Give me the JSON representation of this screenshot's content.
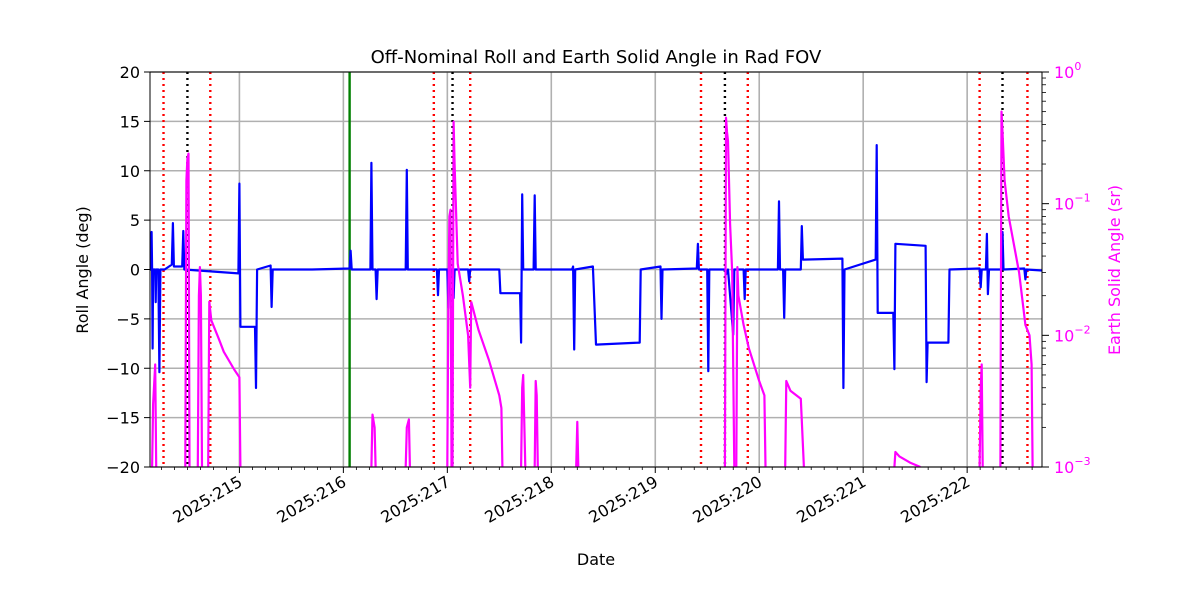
{
  "chart_data": {
    "type": "line",
    "title": "Off-Nominal Roll and Earth Solid Angle in Rad FOV",
    "xlabel": "Date",
    "ylabel": "Roll Angle (deg)",
    "y2label": "Earth Solid Angle (sr)",
    "xlim": [
      214.14,
      222.72
    ],
    "ylim": [
      -20,
      20
    ],
    "y2lim": [
      0.001,
      1
    ],
    "y2scale": "log",
    "grid": true,
    "legend": "none",
    "x_ticks": [
      {
        "value": 215,
        "label": "2025:215"
      },
      {
        "value": 216,
        "label": "2025:216"
      },
      {
        "value": 217,
        "label": "2025:217"
      },
      {
        "value": 218,
        "label": "2025:218"
      },
      {
        "value": 219,
        "label": "2025:219"
      },
      {
        "value": 220,
        "label": "2025:220"
      },
      {
        "value": 221,
        "label": "2025:221"
      },
      {
        "value": 222,
        "label": "2025:222"
      }
    ],
    "y_ticks": [
      {
        "value": 20,
        "label": "20"
      },
      {
        "value": 15,
        "label": "15"
      },
      {
        "value": 10,
        "label": "10"
      },
      {
        "value": 5,
        "label": "5"
      },
      {
        "value": 0,
        "label": "0"
      },
      {
        "value": -5,
        "label": "−5"
      },
      {
        "value": -10,
        "label": "−10"
      },
      {
        "value": -15,
        "label": "−15"
      },
      {
        "value": -20,
        "label": "−20"
      }
    ],
    "y2_ticks": [
      {
        "value": 1,
        "base": "10",
        "exp": "0"
      },
      {
        "value": 0.1,
        "base": "10",
        "exp": "−1"
      },
      {
        "value": 0.01,
        "base": "10",
        "exp": "−2"
      },
      {
        "value": 0.001,
        "base": "10",
        "exp": "−3"
      }
    ],
    "colors": {
      "roll": "#0000ff",
      "solid_angle": "#ff00ff",
      "red_marker": "#ff0000",
      "black_marker": "#000000",
      "green_marker": "#008000",
      "grid": "#b0b0b0"
    },
    "vertical_markers": {
      "red_dotted": [
        214.27,
        214.72,
        216.87,
        217.22,
        219.44,
        219.89,
        222.12,
        222.58
      ],
      "black_dotted": [
        214.5,
        217.05,
        219.67,
        222.34
      ],
      "green_solid": [
        216.06
      ]
    },
    "series": [
      {
        "axis": "left",
        "color": "#0000ff",
        "points": [
          [
            214.14,
            0.0
          ],
          [
            214.15,
            0.0
          ],
          [
            214.155,
            3.8
          ],
          [
            214.16,
            0.0
          ],
          [
            214.165,
            -8
          ],
          [
            214.17,
            0.0
          ],
          [
            214.19,
            0.0
          ],
          [
            214.195,
            -3.3
          ],
          [
            214.2,
            0.0
          ],
          [
            214.22,
            0.0
          ],
          [
            214.23,
            -10.4
          ],
          [
            214.24,
            0.0
          ],
          [
            214.28,
            0.0
          ],
          [
            214.35,
            0.5
          ],
          [
            214.36,
            4.7
          ],
          [
            214.37,
            0.3
          ],
          [
            214.45,
            0.3
          ],
          [
            214.46,
            3.9
          ],
          [
            214.47,
            0.0
          ],
          [
            214.99,
            -0.4
          ],
          [
            215.0,
            8.7
          ],
          [
            215.01,
            -5.8
          ],
          [
            215.15,
            -5.8
          ],
          [
            215.16,
            -12.0
          ],
          [
            215.17,
            0.0
          ],
          [
            215.3,
            0.4
          ],
          [
            215.31,
            -3.8
          ],
          [
            215.32,
            0.0
          ],
          [
            215.7,
            0.0
          ],
          [
            216.06,
            0.1
          ],
          [
            216.07,
            1.9
          ],
          [
            216.08,
            0.0
          ],
          [
            216.26,
            0.0
          ],
          [
            216.27,
            10.8
          ],
          [
            216.28,
            0.0
          ],
          [
            216.31,
            0.0
          ],
          [
            216.32,
            -3.0
          ],
          [
            216.33,
            0.0
          ],
          [
            216.6,
            0.0
          ],
          [
            216.61,
            10.1
          ],
          [
            216.62,
            0.0
          ],
          [
            216.9,
            0.0
          ],
          [
            216.91,
            -2.6
          ],
          [
            216.92,
            0.0
          ],
          [
            217.0,
            0.0
          ],
          [
            217.01,
            -3.9
          ],
          [
            217.02,
            0.0
          ],
          [
            217.05,
            0.0
          ],
          [
            217.06,
            -2.9
          ],
          [
            217.07,
            0.0
          ],
          [
            217.2,
            0.0
          ],
          [
            217.21,
            -1.2
          ],
          [
            217.22,
            0.0
          ],
          [
            217.5,
            0.0
          ],
          [
            217.51,
            -2.4
          ],
          [
            217.7,
            -2.4
          ],
          [
            217.71,
            -7.4
          ],
          [
            217.72,
            7.6
          ],
          [
            217.73,
            0.0
          ],
          [
            217.83,
            0.0
          ],
          [
            217.84,
            7.5
          ],
          [
            217.85,
            0.0
          ],
          [
            218.2,
            0.0
          ],
          [
            218.21,
            0.3
          ],
          [
            218.22,
            -8.1
          ],
          [
            218.23,
            0.0
          ],
          [
            218.4,
            0.3
          ],
          [
            218.43,
            -7.6
          ],
          [
            218.85,
            -7.4
          ],
          [
            218.86,
            0.0
          ],
          [
            219.05,
            0.3
          ],
          [
            219.06,
            -5.0
          ],
          [
            219.07,
            0.0
          ],
          [
            219.4,
            0.1
          ],
          [
            219.41,
            2.6
          ],
          [
            219.42,
            0.0
          ],
          [
            219.5,
            0.0
          ],
          [
            219.51,
            -10.3
          ],
          [
            219.52,
            0.0
          ],
          [
            219.67,
            0.0
          ],
          [
            219.68,
            -0.5
          ],
          [
            219.7,
            0.0
          ],
          [
            219.75,
            -6.6
          ],
          [
            219.76,
            0.0
          ],
          [
            219.85,
            0.0
          ],
          [
            219.86,
            -3.0
          ],
          [
            219.87,
            0.0
          ],
          [
            220.18,
            0.0
          ],
          [
            220.19,
            6.9
          ],
          [
            220.2,
            0.0
          ],
          [
            220.23,
            0.0
          ],
          [
            220.24,
            -4.9
          ],
          [
            220.25,
            0.0
          ],
          [
            220.4,
            0.0
          ],
          [
            220.41,
            4.4
          ],
          [
            220.42,
            1.0
          ],
          [
            220.8,
            1.1
          ],
          [
            220.81,
            -12.0
          ],
          [
            220.82,
            0.0
          ],
          [
            221.12,
            1.0
          ],
          [
            221.13,
            12.6
          ],
          [
            221.14,
            -4.4
          ],
          [
            221.29,
            -4.4
          ],
          [
            221.3,
            -10.1
          ],
          [
            221.31,
            2.6
          ],
          [
            221.6,
            2.4
          ],
          [
            221.61,
            -11.4
          ],
          [
            221.62,
            -7.4
          ],
          [
            221.82,
            -7.4
          ],
          [
            221.83,
            0.0
          ],
          [
            222.12,
            0.1
          ],
          [
            222.13,
            -1.8
          ],
          [
            222.14,
            0.0
          ],
          [
            222.18,
            0.0
          ],
          [
            222.19,
            3.6
          ],
          [
            222.2,
            -2.5
          ],
          [
            222.21,
            0.0
          ],
          [
            222.33,
            0.0
          ],
          [
            222.34,
            3.8
          ],
          [
            222.35,
            0.0
          ],
          [
            222.55,
            0.1
          ],
          [
            222.56,
            -1.0
          ],
          [
            222.57,
            0.0
          ],
          [
            222.72,
            -0.1
          ]
        ]
      },
      {
        "axis": "right",
        "color": "#ff00ff",
        "segments": [
          [
            [
              214.16,
              0.001
            ],
            [
              214.17,
              0.003
            ],
            [
              214.19,
              0.006
            ],
            [
              214.2,
              0.001
            ]
          ],
          [
            [
              214.48,
              0.001
            ],
            [
              214.49,
              0.15
            ],
            [
              214.5,
              0.22
            ],
            [
              214.51,
              0.24
            ],
            [
              214.52,
              0.001
            ]
          ],
          [
            [
              214.6,
              0.001
            ],
            [
              214.61,
              0.02
            ],
            [
              214.62,
              0.033
            ],
            [
              214.63,
              0.02
            ],
            [
              214.64,
              0.001
            ]
          ],
          [
            [
              214.7,
              0.001
            ],
            [
              214.71,
              0.018
            ],
            [
              214.73,
              0.013
            ],
            [
              214.8,
              0.0095
            ],
            [
              214.85,
              0.0075
            ],
            [
              214.95,
              0.0055
            ],
            [
              215.0,
              0.0048
            ],
            [
              215.01,
              0.001
            ]
          ],
          [
            [
              216.27,
              0.001
            ],
            [
              216.28,
              0.0025
            ],
            [
              216.3,
              0.002
            ],
            [
              216.31,
              0.001
            ]
          ],
          [
            [
              216.6,
              0.001
            ],
            [
              216.61,
              0.002
            ],
            [
              216.63,
              0.0023
            ],
            [
              216.64,
              0.001
            ]
          ],
          [
            [
              217.0,
              0.001
            ],
            [
              217.01,
              0.02
            ],
            [
              217.02,
              0.08
            ],
            [
              217.03,
              0.09
            ],
            [
              217.04,
              0.001
            ]
          ],
          [
            [
              217.05,
              0.001
            ],
            [
              217.06,
              0.42
            ],
            [
              217.07,
              0.2
            ],
            [
              217.1,
              0.035
            ],
            [
              217.15,
              0.02
            ],
            [
              217.2,
              0.01
            ],
            [
              217.22,
              0.004
            ],
            [
              217.23,
              0.018
            ]
          ],
          [
            [
              217.23,
              0.018
            ],
            [
              217.3,
              0.011
            ],
            [
              217.4,
              0.0065
            ],
            [
              217.5,
              0.0035
            ],
            [
              217.52,
              0.0028
            ],
            [
              217.53,
              0.001
            ]
          ],
          [
            [
              217.71,
              0.001
            ],
            [
              217.72,
              0.004
            ],
            [
              217.73,
              0.005
            ],
            [
              217.75,
              0.001
            ]
          ],
          [
            [
              217.84,
              0.001
            ],
            [
              217.85,
              0.0045
            ],
            [
              217.86,
              0.0035
            ],
            [
              217.87,
              0.001
            ]
          ],
          [
            [
              218.24,
              0.001
            ],
            [
              218.25,
              0.0022
            ],
            [
              218.26,
              0.001
            ]
          ],
          [
            [
              219.67,
              0.001
            ],
            [
              219.68,
              0.45
            ],
            [
              219.69,
              0.35
            ],
            [
              219.7,
              0.3
            ],
            [
              219.72,
              0.07
            ],
            [
              219.74,
              0.03
            ],
            [
              219.76,
              0.001
            ]
          ],
          [
            [
              219.78,
              0.001
            ],
            [
              219.79,
              0.033
            ],
            [
              219.8,
              0.02
            ],
            [
              219.85,
              0.012
            ],
            [
              219.9,
              0.008
            ],
            [
              219.95,
              0.006
            ],
            [
              220.0,
              0.0045
            ],
            [
              220.05,
              0.0035
            ],
            [
              220.06,
              0.001
            ]
          ],
          [
            [
              220.25,
              0.001
            ],
            [
              220.26,
              0.0045
            ],
            [
              220.3,
              0.0038
            ],
            [
              220.4,
              0.0033
            ],
            [
              220.43,
              0.001
            ]
          ],
          [
            [
              221.3,
              0.001
            ],
            [
              221.31,
              0.0013
            ],
            [
              221.35,
              0.0012
            ],
            [
              221.45,
              0.00108
            ],
            [
              221.55,
              0.001
            ]
          ],
          [
            [
              222.12,
              0.001
            ],
            [
              222.13,
              0.004
            ],
            [
              222.14,
              0.006
            ],
            [
              222.15,
              0.001
            ]
          ],
          [
            [
              222.32,
              0.001
            ],
            [
              222.33,
              0.5
            ],
            [
              222.34,
              0.35
            ],
            [
              222.36,
              0.15
            ],
            [
              222.4,
              0.08
            ],
            [
              222.5,
              0.03
            ],
            [
              222.56,
              0.012
            ],
            [
              222.6,
              0.01
            ],
            [
              222.62,
              0.006
            ],
            [
              222.63,
              0.001
            ]
          ]
        ]
      }
    ]
  }
}
